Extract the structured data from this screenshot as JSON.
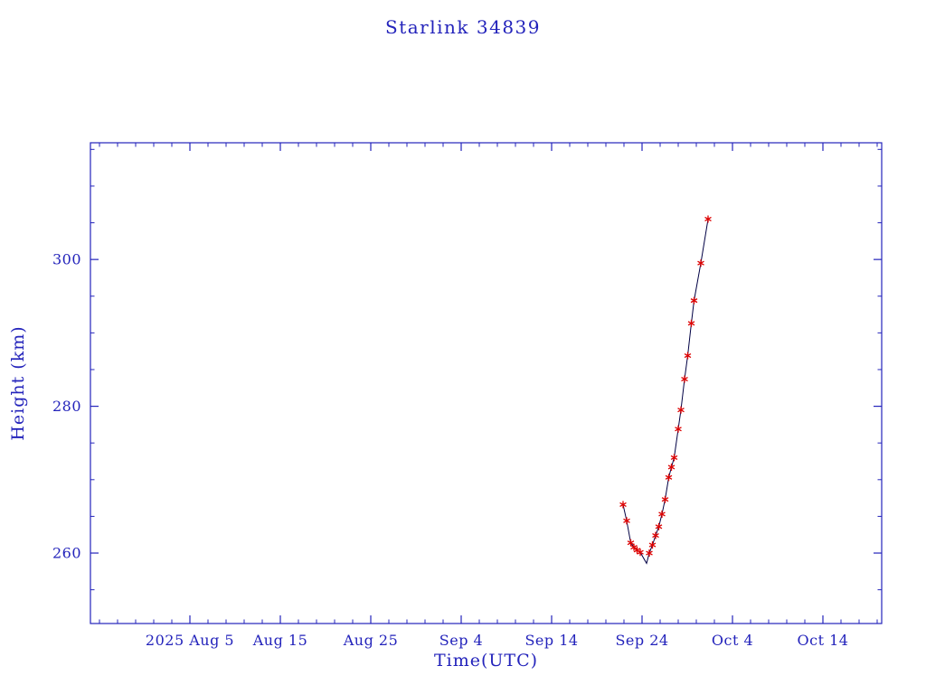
{
  "chart_data": {
    "type": "line",
    "title": "Starlink 34839",
    "xlabel": "Time(UTC)",
    "ylabel": "Height (km)",
    "legend": "none",
    "grid": false,
    "colors": {
      "text_and_axes": "#2323bb",
      "line": "#000044",
      "marker": "#dd0000",
      "background": "#ffffff"
    },
    "x_axis": {
      "description": "days relative to the 2025 Aug 5 tick",
      "lim": [
        -11,
        76.5
      ],
      "major_ticks": [
        {
          "pos": 0,
          "label": "2025 Aug 5"
        },
        {
          "pos": 10,
          "label": "Aug 15"
        },
        {
          "pos": 20,
          "label": "Aug 25"
        },
        {
          "pos": 30,
          "label": "Sep 4"
        },
        {
          "pos": 40,
          "label": "Sep 14"
        },
        {
          "pos": 50,
          "label": "Sep 24"
        },
        {
          "pos": 60,
          "label": "Oct 4"
        },
        {
          "pos": 70,
          "label": "Oct 14"
        }
      ],
      "minor_step": 2
    },
    "y_axis": {
      "lim": [
        250.4,
        315.9
      ],
      "major_ticks": [
        260,
        280,
        300
      ],
      "minor_step": 5
    },
    "series": [
      {
        "name": "Starlink 34839 height",
        "marker_style": "red asterisk",
        "line_points": [
          [
            47.9,
            266.6
          ],
          [
            48.3,
            264.4
          ],
          [
            48.75,
            261.4
          ],
          [
            49.1,
            260.8
          ],
          [
            49.45,
            260.4
          ],
          [
            49.8,
            260.1
          ],
          [
            50.5,
            258.6
          ],
          [
            50.8,
            260.0
          ],
          [
            51.15,
            261.1
          ],
          [
            51.5,
            262.4
          ],
          [
            51.85,
            263.6
          ],
          [
            52.2,
            265.3
          ],
          [
            52.55,
            267.3
          ],
          [
            52.95,
            270.3
          ],
          [
            53.25,
            271.7
          ],
          [
            53.55,
            273.0
          ],
          [
            54.0,
            276.9
          ],
          [
            54.3,
            279.5
          ],
          [
            54.7,
            283.7
          ],
          [
            55.05,
            286.9
          ],
          [
            55.45,
            291.3
          ],
          [
            55.75,
            294.4
          ],
          [
            56.5,
            299.5
          ],
          [
            57.3,
            305.5
          ]
        ],
        "marker_points": [
          [
            47.9,
            266.6
          ],
          [
            48.3,
            264.4
          ],
          [
            48.75,
            261.4
          ],
          [
            49.1,
            260.8
          ],
          [
            49.45,
            260.4
          ],
          [
            49.8,
            260.1
          ],
          [
            50.8,
            260.0
          ],
          [
            51.15,
            261.1
          ],
          [
            51.5,
            262.4
          ],
          [
            51.85,
            263.6
          ],
          [
            52.2,
            265.3
          ],
          [
            52.55,
            267.3
          ],
          [
            52.95,
            270.3
          ],
          [
            53.25,
            271.7
          ],
          [
            53.55,
            273.0
          ],
          [
            54.0,
            276.9
          ],
          [
            54.3,
            279.5
          ],
          [
            54.7,
            283.7
          ],
          [
            55.05,
            286.9
          ],
          [
            55.45,
            291.3
          ],
          [
            55.75,
            294.4
          ],
          [
            56.5,
            299.5
          ],
          [
            57.3,
            305.5
          ]
        ]
      }
    ]
  }
}
